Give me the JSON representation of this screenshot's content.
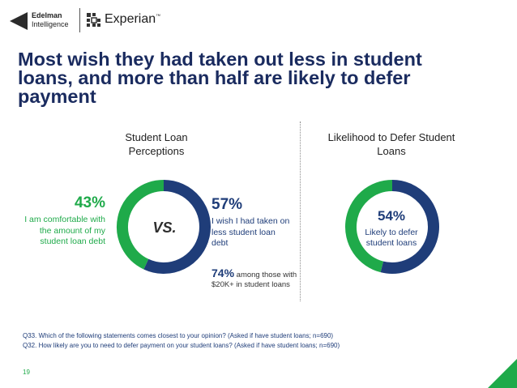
{
  "header": {
    "edelman_line1": "Edelman",
    "edelman_line2": "Intelligence",
    "experian": "Experian",
    "experian_mark": "™"
  },
  "title": "Most wish they had taken out less in student loans, and more than half are likely to defer payment",
  "colors": {
    "green": "#1faa4a",
    "navy": "#1f3d79",
    "title": "#1a2b5f"
  },
  "chart_data": [
    {
      "type": "pie",
      "title": "Student Loan Perceptions",
      "center_label": "VS.",
      "slices": [
        {
          "label": "I wish I had taken on less student loan debt",
          "value": 57,
          "display": "57%",
          "color": "#1f3d79"
        },
        {
          "label": "I am comfortable with the amount of my student loan debt",
          "value": 43,
          "display": "43%",
          "color": "#1faa4a"
        }
      ],
      "annotation": {
        "value": "74%",
        "text": "among those with $20K+ in student loans"
      }
    },
    {
      "type": "pie",
      "title": "Likelihood to Defer Student Loans",
      "slices": [
        {
          "label": "Likely to defer student loans",
          "value": 54,
          "display": "54%",
          "color": "#1f3d79"
        },
        {
          "label": "",
          "value": 46,
          "display": "",
          "color": "#1faa4a"
        }
      ]
    }
  ],
  "footnotes": [
    "Q33. Which of the following statements comes closest to your opinion? (Asked if have student loans; n=690)",
    "Q32. How likely are you to need to defer payment on your student loans? (Asked if have student loans; n=690)"
  ],
  "page_number": "19"
}
